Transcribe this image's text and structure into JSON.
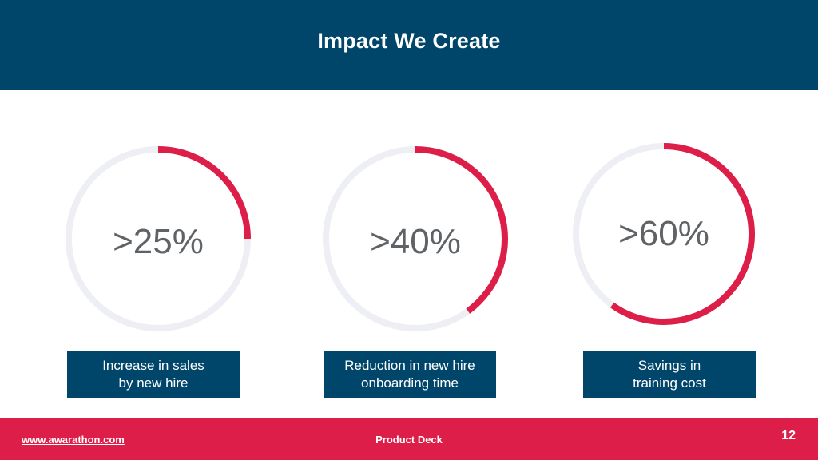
{
  "header": {
    "title": "Impact We Create"
  },
  "colors": {
    "primary": "#00466b",
    "accent": "#dc1e48",
    "track": "#eeeff5",
    "value_text": "#5f6366"
  },
  "metrics": [
    {
      "value": ">25%",
      "progress": 0.25,
      "caption": "Increase in sales\nby new hire"
    },
    {
      "value": ">40%",
      "progress": 0.4,
      "caption": "Reduction in new hire\nonboarding time"
    },
    {
      "value": ">60%",
      "progress": 0.6,
      "caption": "Savings in\ntraining cost"
    }
  ],
  "footer": {
    "url": "www.awarathon.com",
    "center_text": "Product Deck",
    "page_number": "12"
  }
}
